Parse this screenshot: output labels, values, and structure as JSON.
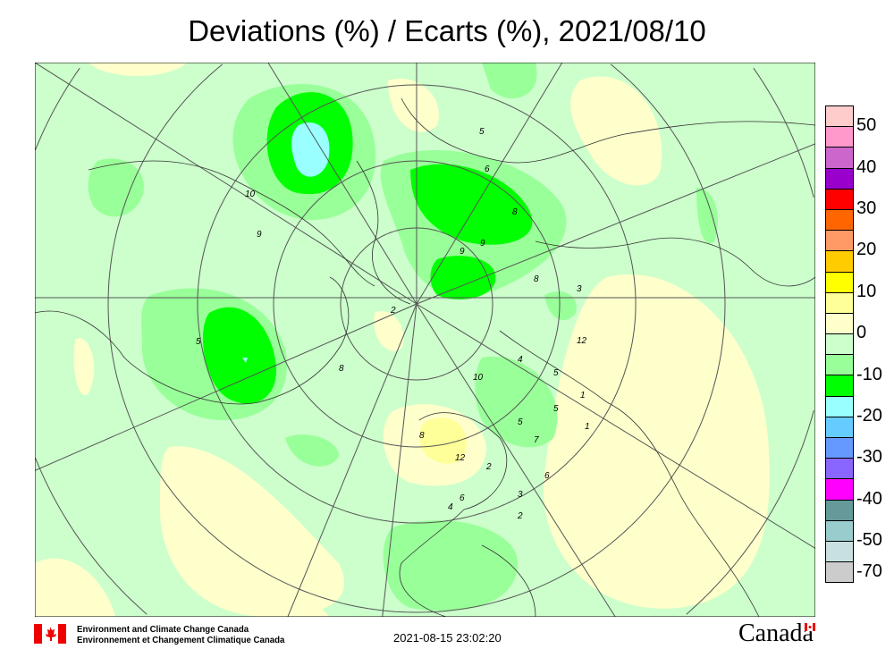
{
  "title": "Deviations (%) / Ecarts (%), 2021/08/10",
  "legend": {
    "colors": [
      "#ffcccc",
      "#ff99cc",
      "#cc66cc",
      "#9900cc",
      "#ff0000",
      "#ff6600",
      "#ff9966",
      "#ffcc00",
      "#ffff00",
      "#ffff99",
      "#ffffcc",
      "#ccffcc",
      "#99ff99",
      "#00ff00",
      "#99ffff",
      "#66ccff",
      "#6699ff",
      "#8866ff",
      "#ff00ff",
      "#669999",
      "#99cccc",
      "#c8e0e0",
      "#cccccc"
    ],
    "labels": [
      "50",
      "40",
      "30",
      "20",
      "10",
      "0",
      "-10",
      "-20",
      "-30",
      "-40",
      "-50",
      "-70"
    ]
  },
  "contour_labels": [
    "10",
    "9",
    "5",
    "6",
    "8",
    "9",
    "9",
    "8",
    "3",
    "12",
    "5",
    "4",
    "10",
    "5",
    "5",
    "7",
    "1",
    "1",
    "12",
    "8",
    "2",
    "6",
    "4",
    "3",
    "2",
    "6",
    "2",
    "5",
    "8"
  ],
  "footer": {
    "org_en": "Environment and Climate Change Canada",
    "org_fr": "Environnement et Changement Climatique Canada",
    "timestamp": "2021-08-15 23:02:20",
    "wordmark": "Canada"
  }
}
